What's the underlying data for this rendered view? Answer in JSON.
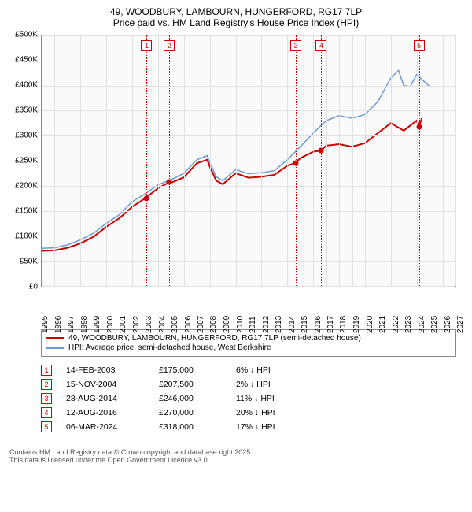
{
  "title": {
    "line1": "49, WOODBURY, LAMBOURN, HUNGERFORD, RG17 7LP",
    "line2": "Price paid vs. HM Land Registry's House Price Index (HPI)"
  },
  "chart": {
    "type": "line",
    "background_color": "#fafafa",
    "grid_color": "#e0e0e0",
    "border_color": "#888888",
    "xlim": [
      1995,
      2027
    ],
    "ylim": [
      0,
      500000
    ],
    "ytick_step": 50000,
    "yticks": [
      0,
      50000,
      100000,
      150000,
      200000,
      250000,
      300000,
      350000,
      400000,
      450000,
      500000
    ],
    "ytick_labels": [
      "£0",
      "£50K",
      "£100K",
      "£150K",
      "£200K",
      "£250K",
      "£300K",
      "£350K",
      "£400K",
      "£450K",
      "£500K"
    ],
    "xticks": [
      1995,
      1996,
      1997,
      1998,
      1999,
      2000,
      2001,
      2002,
      2003,
      2004,
      2005,
      2006,
      2007,
      2008,
      2009,
      2010,
      2011,
      2012,
      2013,
      2014,
      2015,
      2016,
      2017,
      2018,
      2019,
      2020,
      2021,
      2022,
      2023,
      2024,
      2025,
      2026,
      2027
    ],
    "series": {
      "property": {
        "label": "49, WOODBURY, LAMBOURN, HUNGERFORD, RG17 7LP (semi-detached house)",
        "color": "#cc0000",
        "line_width": 2,
        "data": [
          [
            1995,
            70000
          ],
          [
            1996,
            71000
          ],
          [
            1997,
            76000
          ],
          [
            1998,
            85000
          ],
          [
            1999,
            98000
          ],
          [
            2000,
            118000
          ],
          [
            2001,
            135000
          ],
          [
            2002,
            158000
          ],
          [
            2003,
            175000
          ],
          [
            2004,
            195000
          ],
          [
            2004.9,
            207500
          ],
          [
            2005,
            206000
          ],
          [
            2006,
            217000
          ],
          [
            2007,
            245000
          ],
          [
            2007.8,
            252000
          ],
          [
            2008,
            238000
          ],
          [
            2008.5,
            210000
          ],
          [
            2009,
            203000
          ],
          [
            2010,
            225000
          ],
          [
            2011,
            216000
          ],
          [
            2012,
            218000
          ],
          [
            2013,
            222000
          ],
          [
            2014,
            240000
          ],
          [
            2014.65,
            246000
          ],
          [
            2015,
            255000
          ],
          [
            2016,
            268000
          ],
          [
            2016.6,
            270000
          ],
          [
            2017,
            280000
          ],
          [
            2018,
            283000
          ],
          [
            2019,
            278000
          ],
          [
            2020,
            285000
          ],
          [
            2021,
            305000
          ],
          [
            2022,
            325000
          ],
          [
            2023,
            310000
          ],
          [
            2024,
            330000
          ],
          [
            2024.18,
            318000
          ],
          [
            2024.4,
            335000
          ]
        ]
      },
      "hpi": {
        "label": "HPI: Average price, semi-detached house, West Berkshire",
        "color": "#6f99d1",
        "line_width": 1.5,
        "data": [
          [
            1995,
            75000
          ],
          [
            1996,
            76000
          ],
          [
            1997,
            82000
          ],
          [
            1998,
            92000
          ],
          [
            1999,
            105000
          ],
          [
            2000,
            125000
          ],
          [
            2001,
            142000
          ],
          [
            2002,
            168000
          ],
          [
            2003,
            184000
          ],
          [
            2004,
            202000
          ],
          [
            2005,
            212000
          ],
          [
            2006,
            225000
          ],
          [
            2007,
            252000
          ],
          [
            2007.8,
            260000
          ],
          [
            2008,
            246000
          ],
          [
            2008.5,
            218000
          ],
          [
            2009,
            210000
          ],
          [
            2010,
            232000
          ],
          [
            2011,
            224000
          ],
          [
            2012,
            226000
          ],
          [
            2013,
            230000
          ],
          [
            2014,
            252000
          ],
          [
            2015,
            278000
          ],
          [
            2016,
            305000
          ],
          [
            2017,
            330000
          ],
          [
            2018,
            340000
          ],
          [
            2019,
            335000
          ],
          [
            2020,
            342000
          ],
          [
            2021,
            368000
          ],
          [
            2022,
            415000
          ],
          [
            2022.6,
            430000
          ],
          [
            2023,
            400000
          ],
          [
            2023.5,
            398000
          ],
          [
            2024,
            422000
          ],
          [
            2024.5,
            410000
          ],
          [
            2025,
            398000
          ]
        ]
      }
    },
    "sale_markers": [
      {
        "n": "1",
        "year": 2003.12,
        "price": 175000
      },
      {
        "n": "2",
        "year": 2004.87,
        "price": 207500
      },
      {
        "n": "3",
        "year": 2014.65,
        "price": 246000
      },
      {
        "n": "4",
        "year": 2016.62,
        "price": 270000
      },
      {
        "n": "5",
        "year": 2024.18,
        "price": 318000
      }
    ]
  },
  "legend": {
    "items": [
      {
        "color": "#cc0000",
        "label": "49, WOODBURY, LAMBOURN, HUNGERFORD, RG17 7LP (semi-detached house)"
      },
      {
        "color": "#6f99d1",
        "label": "HPI: Average price, semi-detached house, West Berkshire"
      }
    ]
  },
  "sales": [
    {
      "n": "1",
      "date": "14-FEB-2003",
      "price": "£175,000",
      "delta": "6% ↓ HPI"
    },
    {
      "n": "2",
      "date": "15-NOV-2004",
      "price": "£207,500",
      "delta": "2% ↓ HPI"
    },
    {
      "n": "3",
      "date": "28-AUG-2014",
      "price": "£246,000",
      "delta": "11% ↓ HPI"
    },
    {
      "n": "4",
      "date": "12-AUG-2016",
      "price": "£270,000",
      "delta": "20% ↓ HPI"
    },
    {
      "n": "5",
      "date": "06-MAR-2024",
      "price": "£318,000",
      "delta": "17% ↓ HPI"
    }
  ],
  "footer": {
    "line1": "Contains HM Land Registry data © Crown copyright and database right 2025.",
    "line2": "This data is licensed under the Open Government Licence v3.0."
  }
}
